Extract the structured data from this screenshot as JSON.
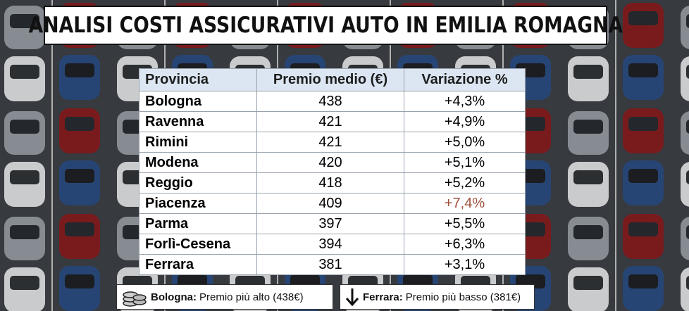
{
  "header": {
    "title": "ANALISI COSTI ASSICURATIVI AUTO IN EMILIA ROMAGNA"
  },
  "table": {
    "columns": [
      "Provincia",
      "Premio medio (€)",
      "Variazione %"
    ],
    "rows": [
      [
        "Bologna",
        438,
        "+4,3%"
      ],
      [
        "Ravenna",
        421,
        "+4,9%"
      ],
      [
        "Rimini",
        421,
        "+5,0%"
      ],
      [
        "Modena",
        420,
        "+5,1%"
      ],
      [
        "Reggio",
        418,
        "+5,2%"
      ],
      [
        "Piacenza",
        409,
        "+7,4%"
      ],
      [
        "Parma",
        397,
        "+5,5%"
      ],
      [
        "Forlì-Cesena",
        394,
        "+6,3%"
      ],
      [
        "Ferrara",
        381,
        "+3,1%"
      ]
    ]
  },
  "notes": [
    {
      "label": "Bologna:",
      "text": "Premio più alto (438€)"
    },
    {
      "label": "Ferrara:",
      "text": "Premio più basso (381€)"
    }
  ]
}
